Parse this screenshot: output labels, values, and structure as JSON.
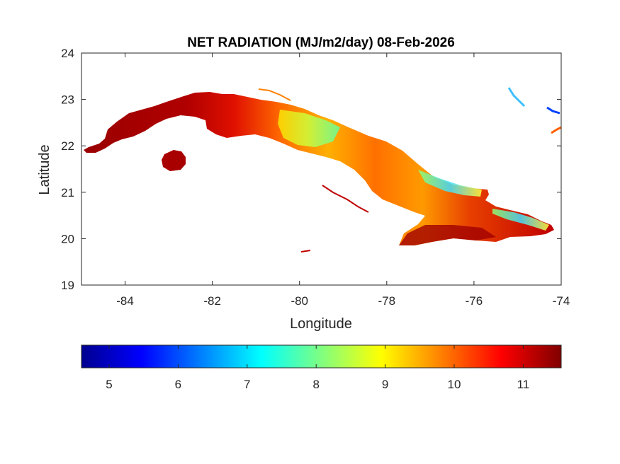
{
  "chart_data": {
    "type": "heatmap",
    "title": "NET RADIATION (MJ/m2/day) 08-Feb-2026",
    "xlabel": "Longitude",
    "ylabel": "Latitude",
    "xlim": [
      -85,
      -74
    ],
    "ylim": [
      19,
      24
    ],
    "xticks": [
      -84,
      -82,
      -80,
      -78,
      -76,
      -74
    ],
    "yticks": [
      19,
      20,
      21,
      22,
      23,
      24
    ],
    "grid": false,
    "colormap": "jet",
    "colorbar": {
      "orientation": "horizontal",
      "placement": "bottom",
      "range": [
        4.6,
        11.55
      ],
      "ticks": [
        5,
        6,
        7,
        8,
        9,
        10,
        11
      ],
      "stops": [
        "#00008f",
        "#0000ff",
        "#0080ff",
        "#00ffff",
        "#80ff80",
        "#ffff00",
        "#ff8000",
        "#ff0000",
        "#800000"
      ]
    },
    "regions": [
      {
        "name": "western Cuba",
        "lon_range": [
          -85,
          -82
        ],
        "approx_value": 11.2
      },
      {
        "name": "Isla de la Juventud",
        "lon_range": [
          -83.1,
          -82.6
        ],
        "approx_value": 11.3
      },
      {
        "name": "central Cuba north",
        "lon_range": [
          -81,
          -78.5
        ],
        "approx_value": 9.3
      },
      {
        "name": "central Cuba south",
        "lon_range": [
          -80,
          -77.5
        ],
        "approx_value": 10.6
      },
      {
        "name": "eastern Cuba north coast",
        "lon_range": [
          -77.5,
          -75.5
        ],
        "approx_value": 8.3
      },
      {
        "name": "Sierra Maestra south",
        "lon_range": [
          -77.7,
          -75.5
        ],
        "approx_value": 11.1
      },
      {
        "name": "Guantanamo east",
        "lon_range": [
          -75.5,
          -74.2
        ],
        "approx_value": 7.5
      },
      {
        "name": "Bahamas islands",
        "lon_range": [
          -75.2,
          -74
        ],
        "approx_value": 6.5
      }
    ]
  }
}
